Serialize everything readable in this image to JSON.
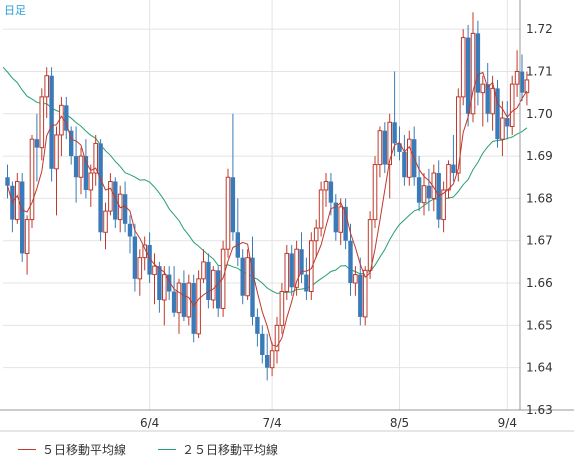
{
  "period_label": "日足",
  "legend": [
    {
      "label": "５日移動平均線",
      "color": "#c0392b"
    },
    {
      "label": "２５日移動平均線",
      "color": "#27a06e"
    }
  ],
  "colors": {
    "up": "#c0392b",
    "down": "#3a7ab8",
    "ma5": "#c0392b",
    "ma25": "#27a06e",
    "grid": "#e4e4e4",
    "axis": "#999999"
  },
  "chart_data": {
    "type": "candlestick",
    "ylim": [
      1.63,
      1.725
    ],
    "yticks": [
      1.63,
      1.64,
      1.65,
      1.66,
      1.67,
      1.68,
      1.69,
      1.7,
      1.71,
      1.72
    ],
    "xticks": [
      {
        "index": 29,
        "label": "6/4"
      },
      {
        "index": 54,
        "label": "7/4"
      },
      {
        "index": 80,
        "label": "8/5"
      },
      {
        "index": 102,
        "label": "9/4"
      }
    ],
    "candles": [
      [
        1.685,
        1.688,
        1.68,
        1.683
      ],
      [
        1.683,
        1.684,
        1.672,
        1.675
      ],
      [
        1.675,
        1.686,
        1.674,
        1.684
      ],
      [
        1.684,
        1.686,
        1.665,
        1.667
      ],
      [
        1.667,
        1.676,
        1.662,
        1.675
      ],
      [
        1.675,
        1.695,
        1.673,
        1.694
      ],
      [
        1.694,
        1.7,
        1.684,
        1.692
      ],
      [
        1.692,
        1.706,
        1.689,
        1.704
      ],
      [
        1.704,
        1.711,
        1.699,
        1.709
      ],
      [
        1.709,
        1.711,
        1.684,
        1.687
      ],
      [
        1.687,
        1.697,
        1.676,
        1.695
      ],
      [
        1.695,
        1.704,
        1.69,
        1.702
      ],
      [
        1.702,
        1.704,
        1.694,
        1.696
      ],
      [
        1.696,
        1.697,
        1.688,
        1.69
      ],
      [
        1.69,
        1.697,
        1.679,
        1.685
      ],
      [
        1.685,
        1.692,
        1.681,
        1.69
      ],
      [
        1.69,
        1.694,
        1.68,
        1.682
      ],
      [
        1.682,
        1.688,
        1.678,
        1.686
      ],
      [
        1.686,
        1.695,
        1.683,
        1.693
      ],
      [
        1.693,
        1.694,
        1.67,
        1.672
      ],
      [
        1.672,
        1.679,
        1.668,
        1.677
      ],
      [
        1.677,
        1.686,
        1.676,
        1.684
      ],
      [
        1.684,
        1.685,
        1.673,
        1.675
      ],
      [
        1.675,
        1.683,
        1.672,
        1.681
      ],
      [
        1.681,
        1.684,
        1.672,
        1.674
      ],
      [
        1.674,
        1.676,
        1.667,
        1.671
      ],
      [
        1.671,
        1.674,
        1.658,
        1.661
      ],
      [
        1.661,
        1.668,
        1.657,
        1.666
      ],
      [
        1.666,
        1.671,
        1.663,
        1.669
      ],
      [
        1.669,
        1.672,
        1.66,
        1.662
      ],
      [
        1.662,
        1.667,
        1.655,
        1.664
      ],
      [
        1.664,
        1.665,
        1.653,
        1.656
      ],
      [
        1.656,
        1.664,
        1.65,
        1.662
      ],
      [
        1.662,
        1.664,
        1.656,
        1.658
      ],
      [
        1.658,
        1.664,
        1.652,
        1.653
      ],
      [
        1.653,
        1.661,
        1.648,
        1.66
      ],
      [
        1.66,
        1.663,
        1.651,
        1.652
      ],
      [
        1.652,
        1.662,
        1.65,
        1.66
      ],
      [
        1.66,
        1.662,
        1.646,
        1.648
      ],
      [
        1.648,
        1.663,
        1.647,
        1.661
      ],
      [
        1.661,
        1.668,
        1.66,
        1.665
      ],
      [
        1.665,
        1.667,
        1.654,
        1.656
      ],
      [
        1.656,
        1.664,
        1.654,
        1.663
      ],
      [
        1.663,
        1.664,
        1.652,
        1.654
      ],
      [
        1.654,
        1.67,
        1.652,
        1.668
      ],
      [
        1.668,
        1.687,
        1.666,
        1.685
      ],
      [
        1.685,
        1.7,
        1.67,
        1.672
      ],
      [
        1.672,
        1.68,
        1.664,
        1.666
      ],
      [
        1.666,
        1.668,
        1.655,
        1.657
      ],
      [
        1.657,
        1.668,
        1.656,
        1.666
      ],
      [
        1.666,
        1.671,
        1.65,
        1.652
      ],
      [
        1.652,
        1.654,
        1.645,
        1.648
      ],
      [
        1.648,
        1.65,
        1.641,
        1.643
      ],
      [
        1.643,
        1.648,
        1.637,
        1.64
      ],
      [
        1.64,
        1.646,
        1.638,
        1.644
      ],
      [
        1.644,
        1.652,
        1.641,
        1.65
      ],
      [
        1.65,
        1.66,
        1.648,
        1.658
      ],
      [
        1.658,
        1.669,
        1.656,
        1.667
      ],
      [
        1.667,
        1.669,
        1.657,
        1.659
      ],
      [
        1.659,
        1.67,
        1.657,
        1.668
      ],
      [
        1.668,
        1.672,
        1.66,
        1.662
      ],
      [
        1.662,
        1.666,
        1.656,
        1.658
      ],
      [
        1.658,
        1.672,
        1.656,
        1.67
      ],
      [
        1.67,
        1.675,
        1.666,
        1.673
      ],
      [
        1.673,
        1.684,
        1.671,
        1.682
      ],
      [
        1.682,
        1.686,
        1.678,
        1.684
      ],
      [
        1.684,
        1.686,
        1.676,
        1.679
      ],
      [
        1.679,
        1.681,
        1.67,
        1.672
      ],
      [
        1.672,
        1.68,
        1.669,
        1.678
      ],
      [
        1.678,
        1.68,
        1.668,
        1.67
      ],
      [
        1.67,
        1.674,
        1.657,
        1.66
      ],
      [
        1.66,
        1.664,
        1.657,
        1.662
      ],
      [
        1.662,
        1.666,
        1.65,
        1.652
      ],
      [
        1.652,
        1.664,
        1.65,
        1.663
      ],
      [
        1.663,
        1.677,
        1.661,
        1.675
      ],
      [
        1.675,
        1.69,
        1.673,
        1.688
      ],
      [
        1.688,
        1.697,
        1.685,
        1.696
      ],
      [
        1.696,
        1.698,
        1.686,
        1.688
      ],
      [
        1.688,
        1.7,
        1.68,
        1.698
      ],
      [
        1.698,
        1.71,
        1.69,
        1.693
      ],
      [
        1.693,
        1.697,
        1.689,
        1.691
      ],
      [
        1.691,
        1.695,
        1.683,
        1.685
      ],
      [
        1.685,
        1.696,
        1.683,
        1.694
      ],
      [
        1.694,
        1.697,
        1.683,
        1.685
      ],
      [
        1.685,
        1.69,
        1.677,
        1.679
      ],
      [
        1.679,
        1.686,
        1.676,
        1.683
      ],
      [
        1.683,
        1.687,
        1.677,
        1.68
      ],
      [
        1.68,
        1.688,
        1.677,
        1.686
      ],
      [
        1.686,
        1.689,
        1.673,
        1.675
      ],
      [
        1.675,
        1.684,
        1.672,
        1.682
      ],
      [
        1.682,
        1.689,
        1.68,
        1.688
      ],
      [
        1.688,
        1.695,
        1.684,
        1.686
      ],
      [
        1.686,
        1.706,
        1.684,
        1.704
      ],
      [
        1.704,
        1.72,
        1.702,
        1.718
      ],
      [
        1.718,
        1.721,
        1.697,
        1.7
      ],
      [
        1.7,
        1.724,
        1.698,
        1.719
      ],
      [
        1.719,
        1.722,
        1.702,
        1.705
      ],
      [
        1.705,
        1.709,
        1.697,
        1.707
      ],
      [
        1.707,
        1.712,
        1.698,
        1.7
      ],
      [
        1.7,
        1.709,
        1.696,
        1.706
      ],
      [
        1.706,
        1.708,
        1.692,
        1.694
      ],
      [
        1.694,
        1.703,
        1.69,
        1.699
      ],
      [
        1.699,
        1.703,
        1.694,
        1.697
      ],
      [
        1.697,
        1.709,
        1.695,
        1.707
      ],
      [
        1.707,
        1.715,
        1.704,
        1.71
      ],
      [
        1.71,
        1.714,
        1.703,
        1.705
      ],
      [
        1.705,
        1.71,
        1.702,
        1.708
      ]
    ]
  }
}
